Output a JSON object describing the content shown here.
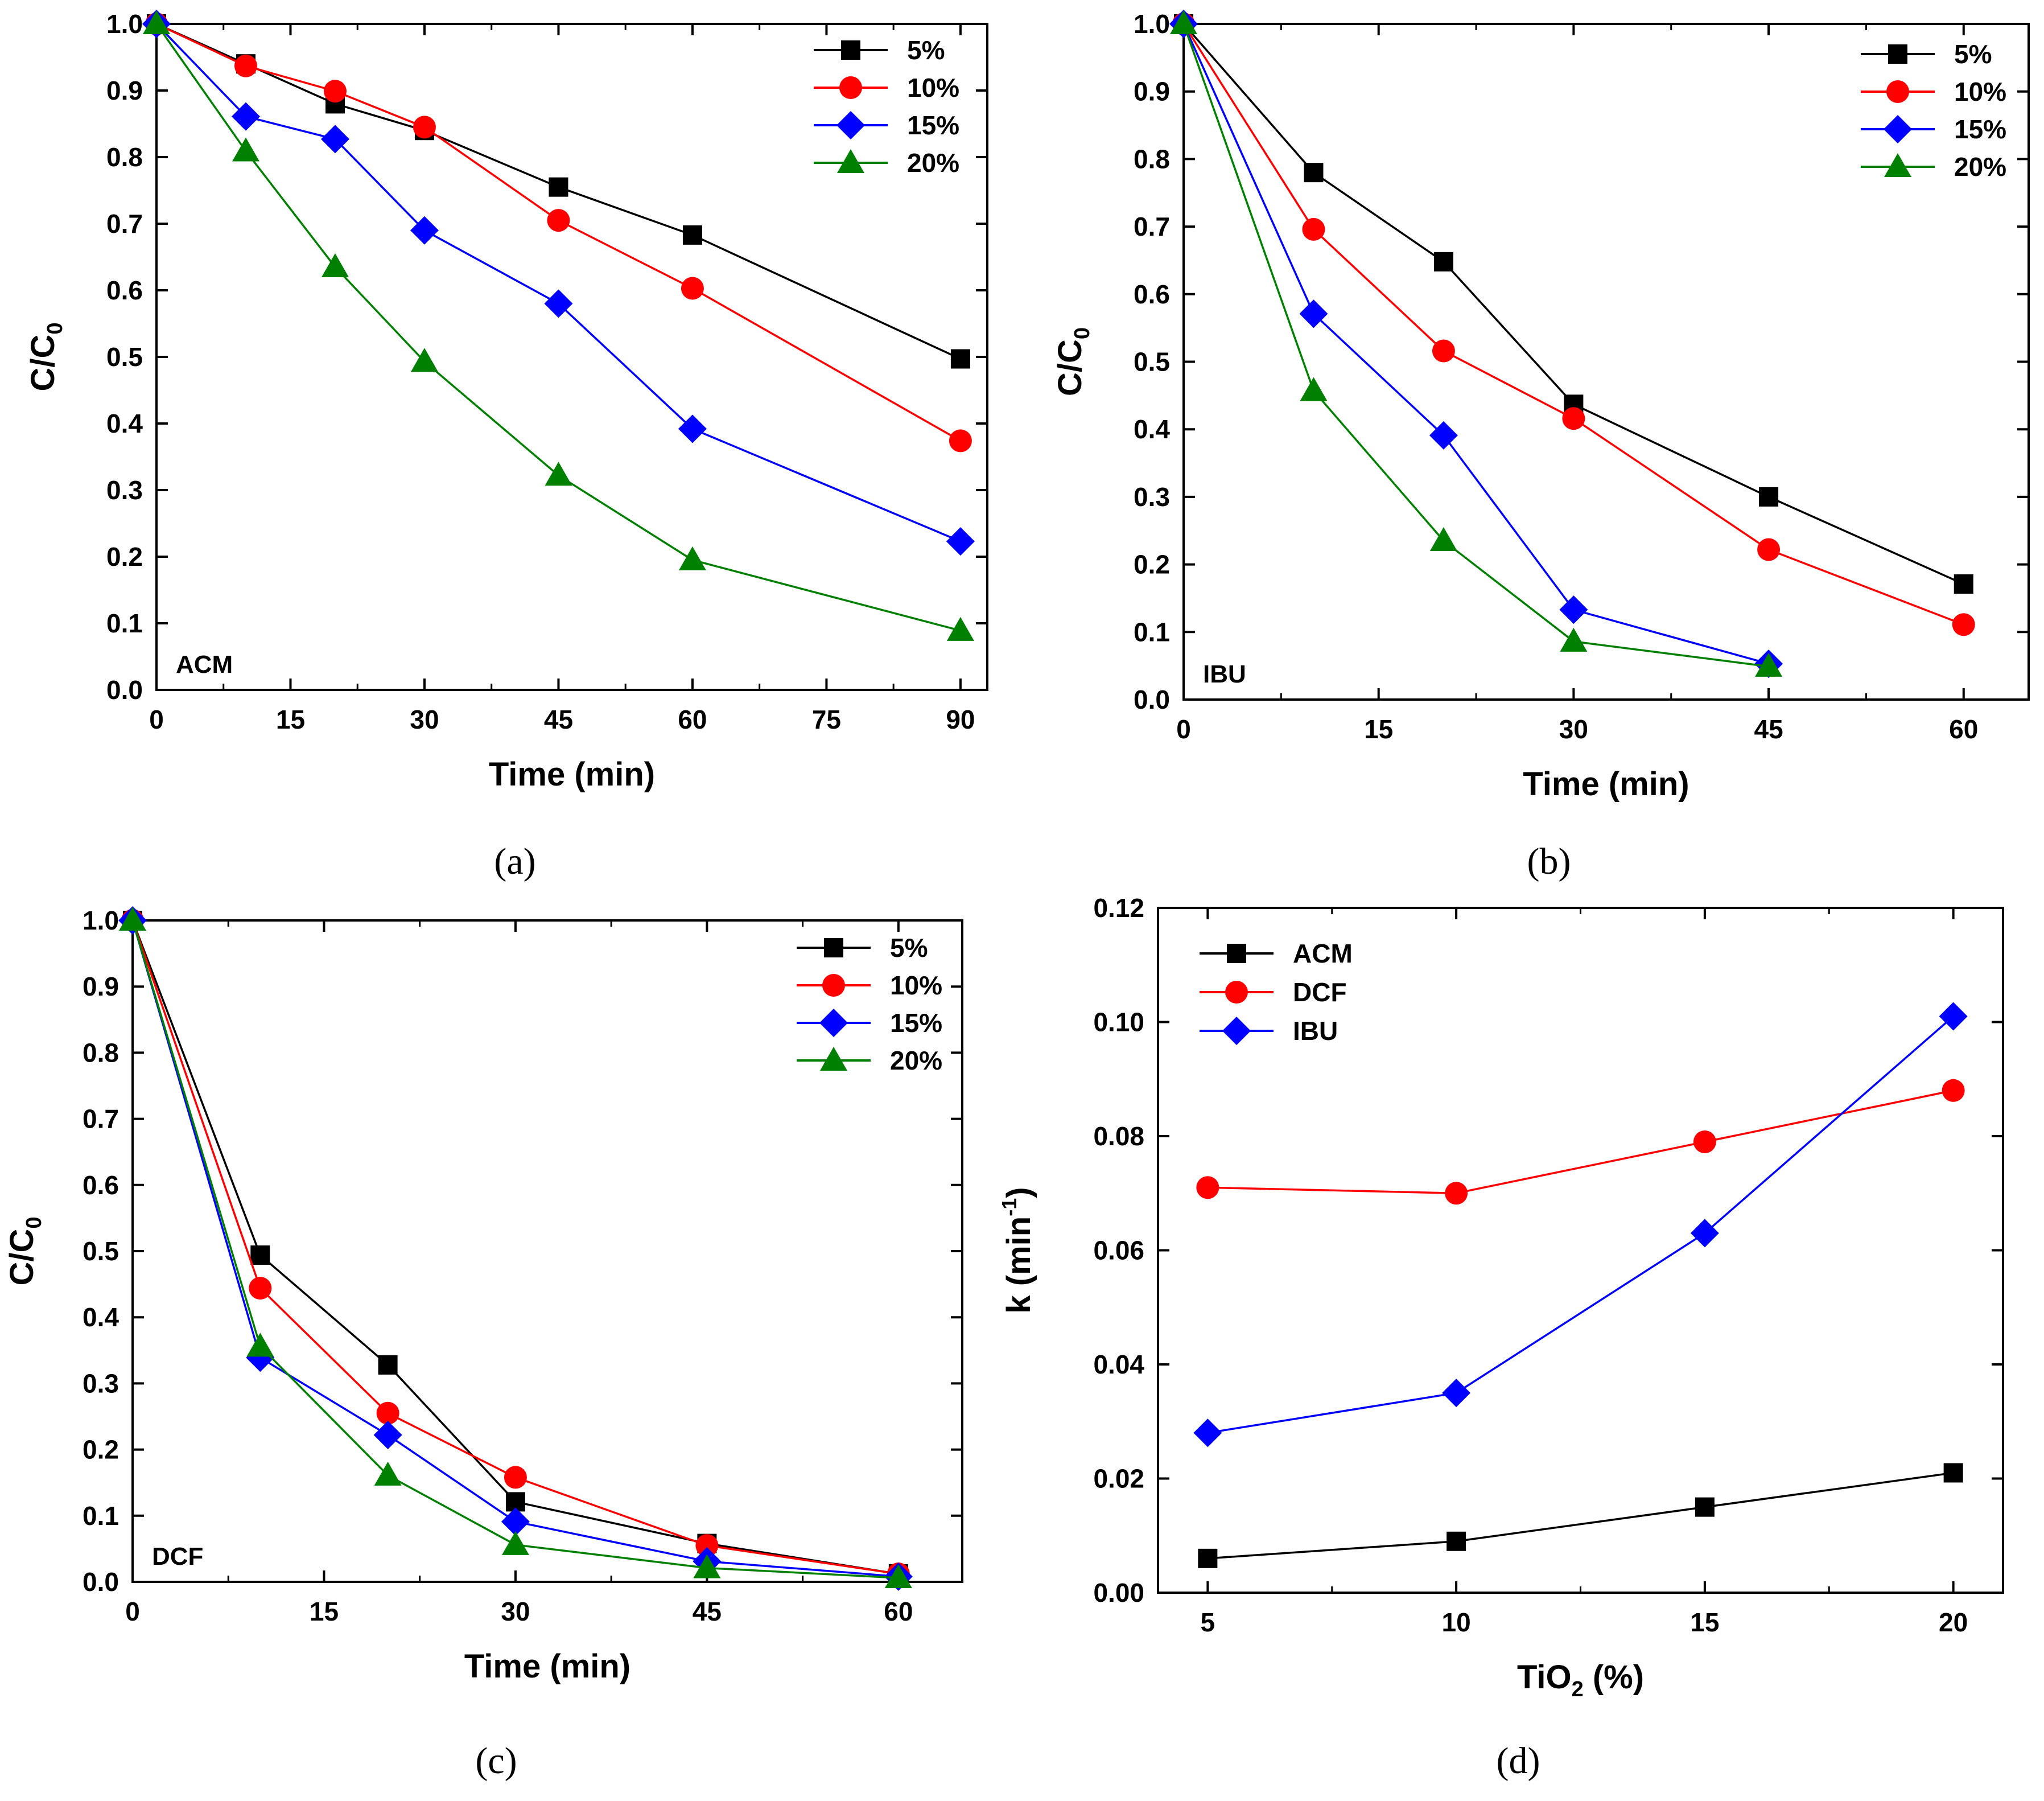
{
  "chart_data": [
    {
      "type": "line",
      "panel_caption": "(a)",
      "annotation": "ACM",
      "xlabel": "Time (min)",
      "ylabel": "C/C",
      "ylabel_sub": "0",
      "xlim": [
        0,
        93
      ],
      "ylim": [
        0,
        1.0
      ],
      "xticks": [
        0,
        15,
        30,
        45,
        60,
        75,
        90
      ],
      "xtick_labels": [
        "0",
        "15",
        "30",
        "45",
        "60",
        "75",
        "90"
      ],
      "yticks": [
        0,
        0.1,
        0.2,
        0.3,
        0.4,
        0.5,
        0.6,
        0.7,
        0.8,
        0.9,
        1.0
      ],
      "ytick_labels": [
        "0.0",
        "0.1",
        "0.2",
        "0.3",
        "0.4",
        "0.5",
        "0.6",
        "0.7",
        "0.8",
        "0.9",
        "1.0"
      ],
      "legend_position": "top-right",
      "series": [
        {
          "name": "5%",
          "color": "#000000",
          "marker": "square",
          "x": [
            0,
            10,
            20,
            30,
            45,
            60,
            90
          ],
          "y": [
            1.0,
            0.94,
            0.88,
            0.84,
            0.755,
            0.683,
            0.497
          ]
        },
        {
          "name": "10%",
          "color": "#ff0000",
          "marker": "circle",
          "x": [
            0,
            10,
            20,
            30,
            45,
            60,
            90
          ],
          "y": [
            1.0,
            0.937,
            0.899,
            0.845,
            0.705,
            0.603,
            0.374
          ]
        },
        {
          "name": "15%",
          "color": "#0000ff",
          "marker": "diamond",
          "x": [
            0,
            10,
            20,
            30,
            45,
            60,
            90
          ],
          "y": [
            1.0,
            0.861,
            0.827,
            0.69,
            0.58,
            0.392,
            0.223
          ]
        },
        {
          "name": "20%",
          "color": "#008000",
          "marker": "triangle",
          "x": [
            0,
            10,
            20,
            30,
            45,
            60,
            90
          ],
          "y": [
            1.0,
            0.809,
            0.635,
            0.493,
            0.322,
            0.195,
            0.089
          ]
        }
      ]
    },
    {
      "type": "line",
      "panel_caption": "(b)",
      "annotation": "IBU",
      "xlabel": "Time (min)",
      "ylabel": "C/C",
      "ylabel_sub": "0",
      "xlim": [
        0,
        65
      ],
      "ylim": [
        0,
        1.0
      ],
      "xticks": [
        0,
        15,
        30,
        45,
        60
      ],
      "xtick_labels": [
        "0",
        "15",
        "30",
        "45",
        "60"
      ],
      "yticks": [
        0,
        0.1,
        0.2,
        0.3,
        0.4,
        0.5,
        0.6,
        0.7,
        0.8,
        0.9,
        1.0
      ],
      "ytick_labels": [
        "0.0",
        "0.1",
        "0.2",
        "0.3",
        "0.4",
        "0.5",
        "0.6",
        "0.7",
        "0.8",
        "0.9",
        "1.0"
      ],
      "legend_position": "top-right",
      "series": [
        {
          "name": "5%",
          "color": "#000000",
          "marker": "square",
          "x": [
            0,
            10,
            20,
            30,
            45,
            60
          ],
          "y": [
            1.0,
            0.78,
            0.648,
            0.437,
            0.3,
            0.171
          ]
        },
        {
          "name": "10%",
          "color": "#ff0000",
          "marker": "circle",
          "x": [
            0,
            10,
            20,
            30,
            45,
            60
          ],
          "y": [
            1.0,
            0.696,
            0.516,
            0.416,
            0.222,
            0.111
          ]
        },
        {
          "name": "15%",
          "color": "#0000ff",
          "marker": "diamond",
          "x": [
            0,
            10,
            20,
            30,
            45
          ],
          "y": [
            1.0,
            0.571,
            0.391,
            0.133,
            0.053
          ]
        },
        {
          "name": "20%",
          "color": "#008000",
          "marker": "triangle",
          "x": [
            0,
            10,
            20,
            30,
            45
          ],
          "y": [
            1.0,
            0.457,
            0.235,
            0.086,
            0.049
          ]
        }
      ]
    },
    {
      "type": "line",
      "panel_caption": "(c)",
      "annotation": "DCF",
      "xlabel": "Time (min)",
      "ylabel": "C/C",
      "ylabel_sub": "0",
      "xlim": [
        0,
        65
      ],
      "ylim": [
        0,
        1.0
      ],
      "xticks": [
        0,
        15,
        30,
        45,
        60
      ],
      "xtick_labels": [
        "0",
        "15",
        "30",
        "45",
        "60"
      ],
      "yticks": [
        0,
        0.1,
        0.2,
        0.3,
        0.4,
        0.5,
        0.6,
        0.7,
        0.8,
        0.9,
        1.0
      ],
      "ytick_labels": [
        "0.0",
        "0.1",
        "0.2",
        "0.3",
        "0.4",
        "0.5",
        "0.6",
        "0.7",
        "0.8",
        "0.9",
        "1.0"
      ],
      "legend_position": "top-right",
      "series": [
        {
          "name": "5%",
          "color": "#000000",
          "marker": "square",
          "x": [
            0,
            10,
            20,
            30,
            45,
            60
          ],
          "y": [
            1.0,
            0.494,
            0.328,
            0.121,
            0.058,
            0.012
          ]
        },
        {
          "name": "10%",
          "color": "#ff0000",
          "marker": "circle",
          "x": [
            0,
            10,
            20,
            30,
            45,
            60
          ],
          "y": [
            1.0,
            0.444,
            0.255,
            0.158,
            0.055,
            0.012
          ]
        },
        {
          "name": "15%",
          "color": "#0000ff",
          "marker": "diamond",
          "x": [
            0,
            10,
            20,
            30,
            45,
            60
          ],
          "y": [
            1.0,
            0.339,
            0.222,
            0.091,
            0.031,
            0.008
          ]
        },
        {
          "name": "20%",
          "color": "#008000",
          "marker": "triangle",
          "x": [
            0,
            10,
            20,
            30,
            45,
            60
          ],
          "y": [
            1.0,
            0.356,
            0.161,
            0.056,
            0.021,
            0.006
          ]
        }
      ]
    },
    {
      "type": "line",
      "panel_caption": "(d)",
      "annotation": "",
      "xlabel": "TiO",
      "xlabel_sub": "2",
      "xlabel_suffix": " (%)",
      "ylabel": "k (min",
      "ylabel_sup": "-1",
      "ylabel_suffix": ")",
      "xlim": [
        4,
        21
      ],
      "ylim": [
        0,
        0.12
      ],
      "xticks": [
        5,
        10,
        15,
        20
      ],
      "xtick_labels": [
        "5",
        "10",
        "15",
        "20"
      ],
      "yticks": [
        0,
        0.02,
        0.04,
        0.06,
        0.08,
        0.1,
        0.12
      ],
      "ytick_labels": [
        "0.00",
        "0.02",
        "0.04",
        "0.06",
        "0.08",
        "0.10",
        "0.12"
      ],
      "legend_position": "top-left",
      "series": [
        {
          "name": "ACM",
          "color": "#000000",
          "marker": "square",
          "x": [
            5,
            10,
            15,
            20
          ],
          "y": [
            0.006,
            0.009,
            0.015,
            0.021
          ]
        },
        {
          "name": "DCF",
          "color": "#ff0000",
          "marker": "circle",
          "x": [
            5,
            10,
            15,
            20
          ],
          "y": [
            0.071,
            0.07,
            0.079,
            0.088
          ]
        },
        {
          "name": "IBU",
          "color": "#0000ff",
          "marker": "diamond",
          "x": [
            5,
            10,
            15,
            20
          ],
          "y": [
            0.028,
            0.035,
            0.063,
            0.101
          ]
        }
      ]
    }
  ]
}
